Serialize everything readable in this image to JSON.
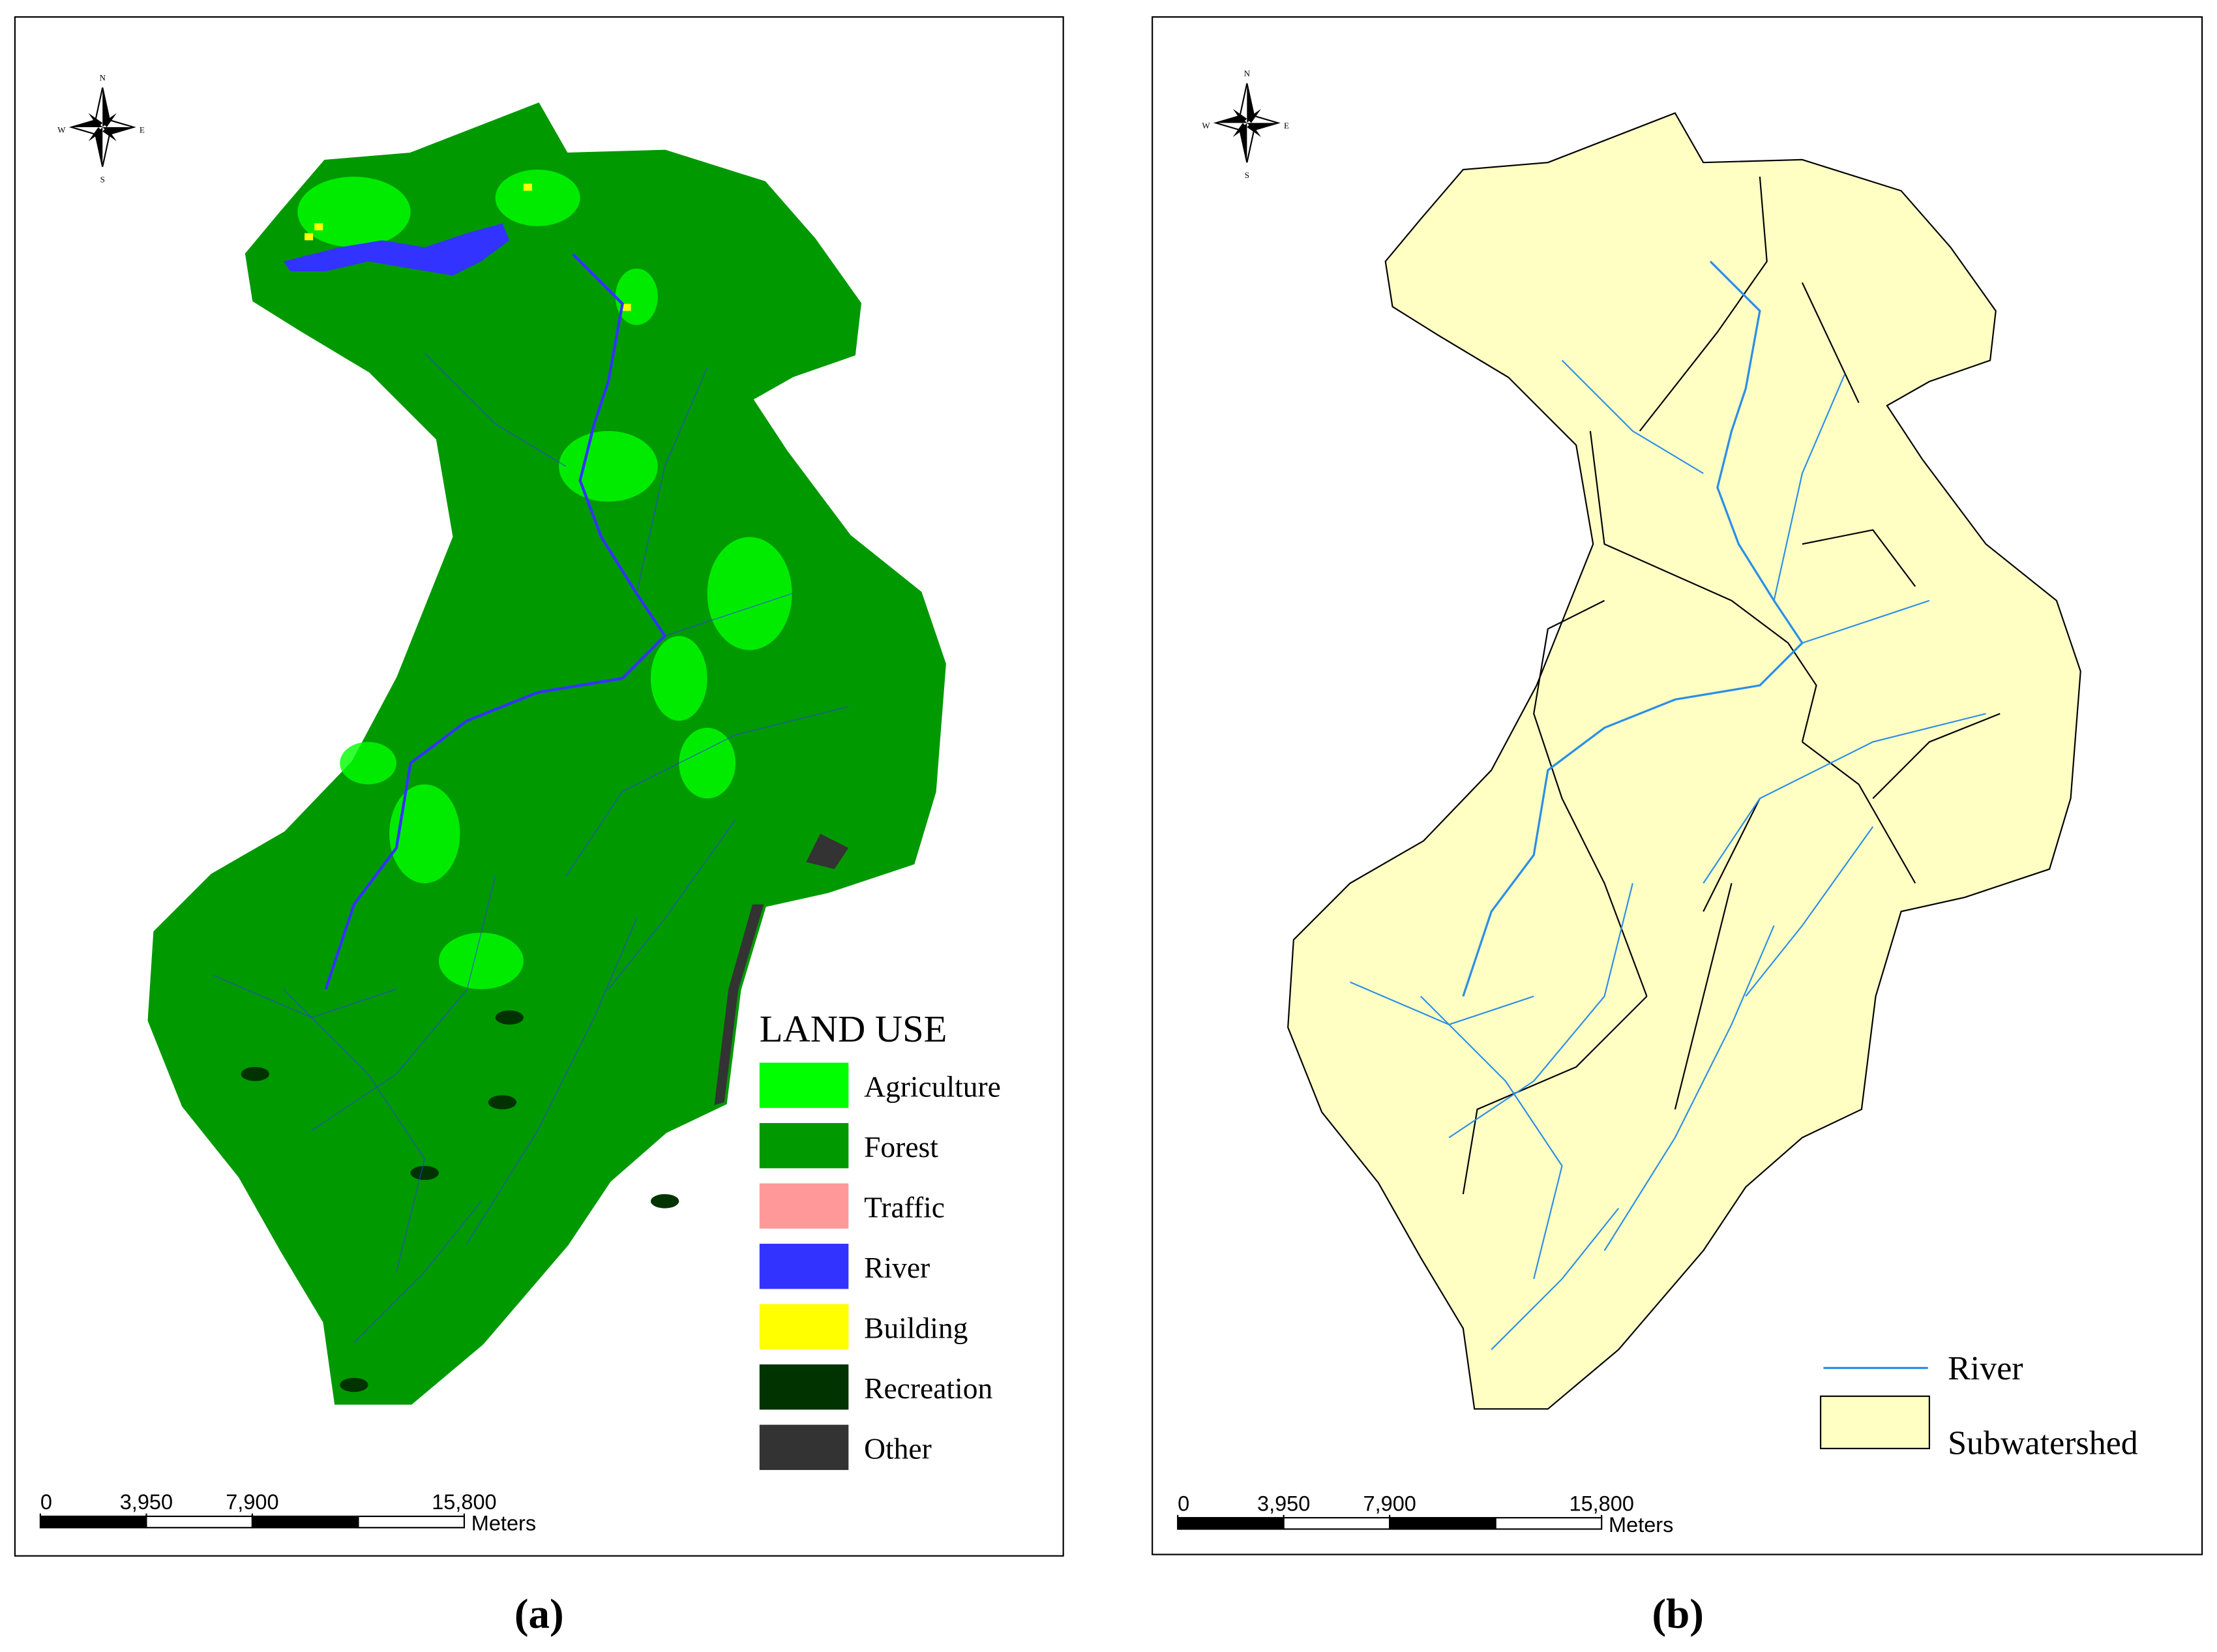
{
  "panels": [
    {
      "caption": "(a)",
      "compass": {
        "n": "N",
        "s": "S",
        "e": "E",
        "w": "W"
      },
      "legend": {
        "title": "LAND USE",
        "items": [
          {
            "label": "Agriculture",
            "color": "#00ff00"
          },
          {
            "label": "Forest",
            "color": "#009900"
          },
          {
            "label": "Traffic",
            "color": "#ff9999"
          },
          {
            "label": "River",
            "color": "#3333ff"
          },
          {
            "label": "Building",
            "color": "#ffff00"
          },
          {
            "label": "Recreation",
            "color": "#003300"
          },
          {
            "label": "Other",
            "color": "#333333"
          }
        ]
      },
      "scale_bar": {
        "ticks": [
          0,
          {
            "value": 3950,
            "label": "3,950"
          },
          {
            "value": 7900,
            "label": "7,900"
          },
          {
            "value": 15800,
            "label": "15,800"
          }
        ],
        "unit": "Meters"
      }
    },
    {
      "caption": "(b)",
      "compass": {
        "n": "N",
        "s": "S",
        "e": "E",
        "w": "W"
      },
      "legend": {
        "items": [
          {
            "label": "River",
            "color": "#2b8fe6",
            "symbol": "line"
          },
          {
            "label": "Subwatershed",
            "color": "#ffffc4",
            "symbol": "box"
          }
        ]
      },
      "scale_bar": {
        "ticks": [
          0,
          {
            "value": 3950,
            "label": "3,950"
          },
          {
            "value": 7900,
            "label": "7,900"
          },
          {
            "value": 15800,
            "label": "15,800"
          }
        ],
        "unit": "Meters"
      }
    }
  ]
}
